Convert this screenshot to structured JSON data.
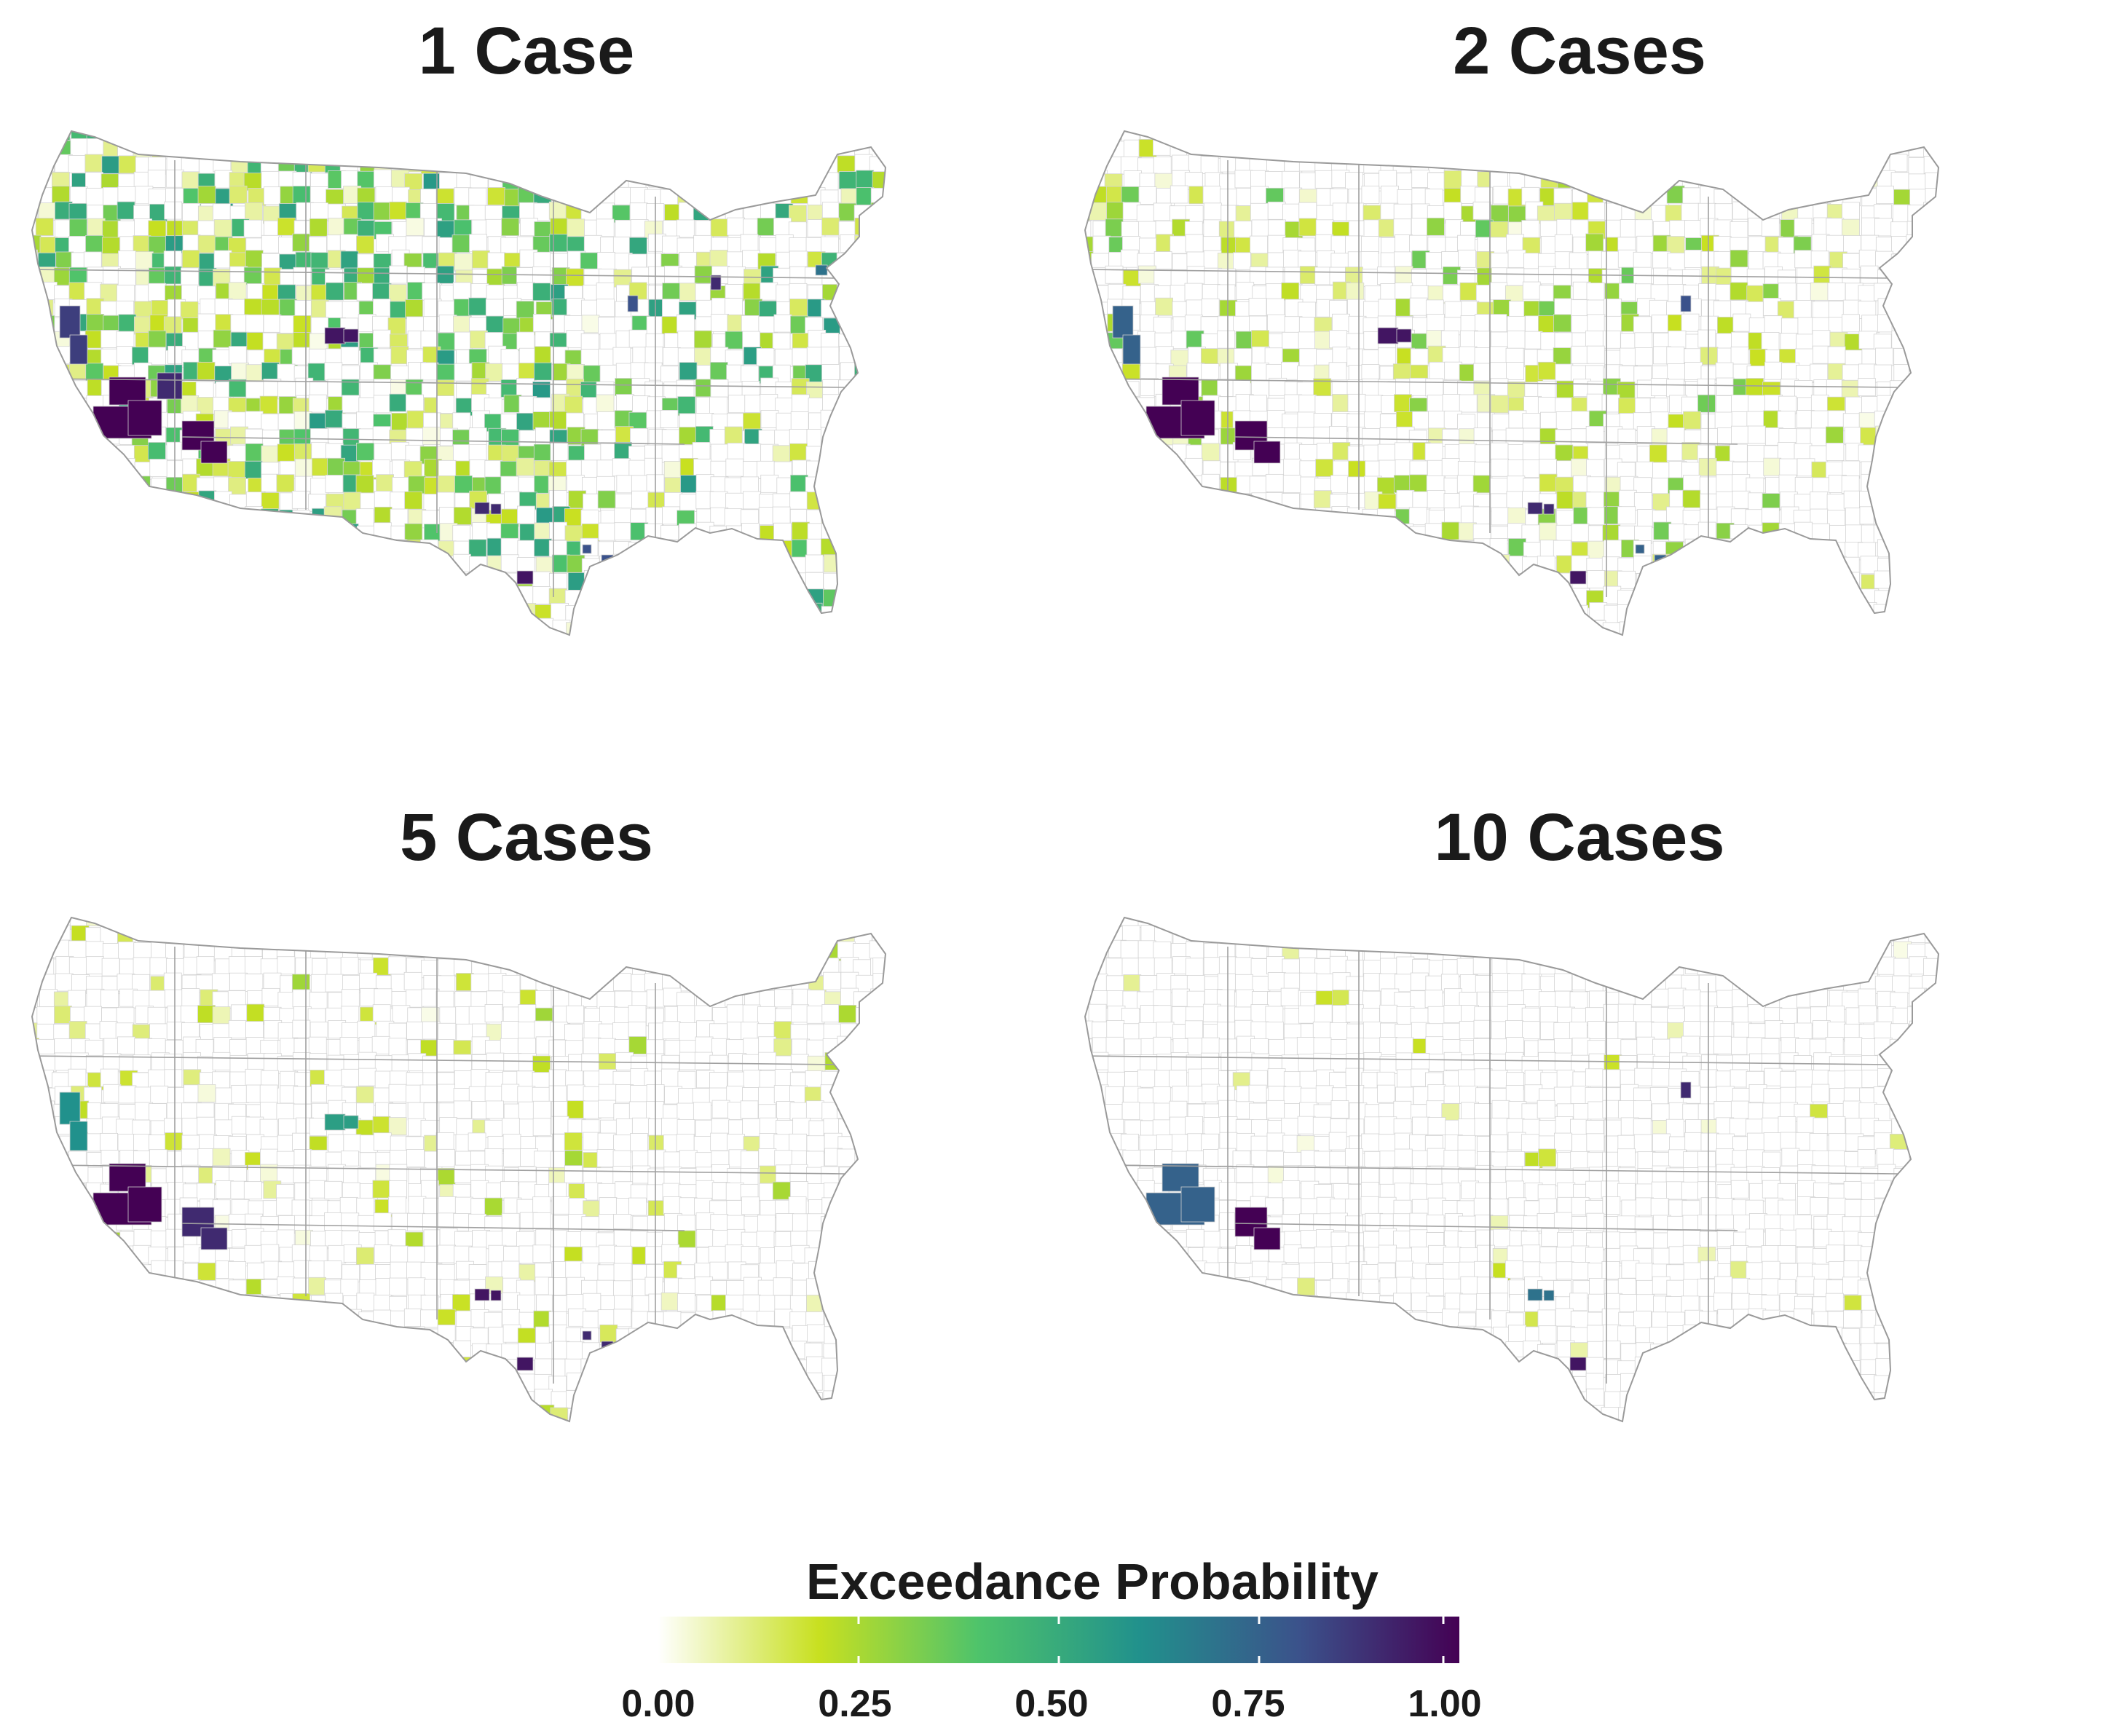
{
  "maps": [
    {
      "title": "1 Case",
      "hotspots": [
        {
          "region": "southern-california",
          "p": 1.0
        },
        {
          "region": "central-california",
          "p": 0.85
        },
        {
          "region": "southern-arizona",
          "p": 1.0
        },
        {
          "region": "southern-nevada",
          "p": 0.9
        },
        {
          "region": "colorado-front-range",
          "p": 0.95
        },
        {
          "region": "houston-texas",
          "p": 0.95
        },
        {
          "region": "dallas-texas",
          "p": 0.9
        },
        {
          "region": "new-orleans-louisiana",
          "p": 0.8
        },
        {
          "region": "chicago-illinois",
          "p": 0.8
        },
        {
          "region": "detroit-michigan",
          "p": 0.9
        },
        {
          "region": "new-york-city",
          "p": 0.7
        }
      ]
    },
    {
      "title": "2 Cases",
      "hotspots": [
        {
          "region": "southern-california",
          "p": 1.0
        },
        {
          "region": "central-california",
          "p": 0.75
        },
        {
          "region": "southern-arizona",
          "p": 1.0
        },
        {
          "region": "colorado-front-range",
          "p": 0.95
        },
        {
          "region": "houston-texas",
          "p": 0.95
        },
        {
          "region": "dallas-texas",
          "p": 0.9
        },
        {
          "region": "new-orleans-louisiana",
          "p": 0.75
        },
        {
          "region": "chicago-illinois",
          "p": 0.8
        }
      ]
    },
    {
      "title": "5 Cases",
      "hotspots": [
        {
          "region": "southern-california",
          "p": 1.0
        },
        {
          "region": "central-california",
          "p": 0.6
        },
        {
          "region": "southern-arizona",
          "p": 0.9
        },
        {
          "region": "colorado-front-range",
          "p": 0.55
        },
        {
          "region": "houston-texas",
          "p": 0.95
        },
        {
          "region": "dallas-texas",
          "p": 0.95
        },
        {
          "region": "new-orleans-louisiana",
          "p": 0.9
        }
      ]
    },
    {
      "title": "10 Cases",
      "hotspots": [
        {
          "region": "southern-california",
          "p": 0.75
        },
        {
          "region": "southern-arizona",
          "p": 1.0
        },
        {
          "region": "houston-texas",
          "p": 0.95
        },
        {
          "region": "dallas-texas",
          "p": 0.7
        },
        {
          "region": "chicago-illinois",
          "p": 0.9
        }
      ]
    }
  ],
  "legend": {
    "title": "Exceedance Probability",
    "ticks": [
      "0.00",
      "0.25",
      "0.50",
      "0.75",
      "1.00"
    ],
    "range": [
      0,
      1
    ],
    "colors": [
      "#ffffff",
      "#c8e020",
      "#4ec36b",
      "#21918c",
      "#3b528b",
      "#440154"
    ]
  }
}
